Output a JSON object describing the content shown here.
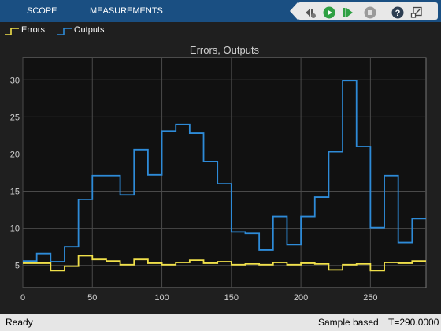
{
  "toolstrip": {
    "tabs": [
      {
        "label": "SCOPE"
      },
      {
        "label": "MEASUREMENTS"
      }
    ],
    "quick_access": [
      "step-back-icon",
      "run-icon",
      "step-forward-icon",
      "stop-icon",
      "help-icon",
      "undock-icon"
    ]
  },
  "legend": {
    "items": [
      {
        "label": "Errors",
        "color": "#f0e04a"
      },
      {
        "label": "Outputs",
        "color": "#2e8bd8"
      }
    ]
  },
  "colors": {
    "toolstrip": "#1a4f82",
    "background": "#1f1f1f",
    "axes": "#111111",
    "grid": "#4a4a4a",
    "text": "#d0d0d0"
  },
  "status": {
    "ready": "Ready",
    "sample_based": "Sample based",
    "time": "T=290.0000"
  },
  "chart_data": {
    "type": "line",
    "step": true,
    "title": "Errors, Outputs",
    "xlabel": "",
    "ylabel": "",
    "xlim": [
      0,
      290
    ],
    "ylim": [
      2,
      33
    ],
    "xticks": [
      0,
      50,
      100,
      150,
      200,
      250
    ],
    "yticks": [
      5,
      10,
      15,
      20,
      25,
      30
    ],
    "grid": true,
    "x": [
      0,
      10,
      20,
      30,
      40,
      50,
      60,
      70,
      80,
      90,
      100,
      110,
      120,
      130,
      140,
      150,
      160,
      170,
      180,
      190,
      200,
      210,
      220,
      230,
      240,
      250,
      260,
      270,
      280,
      290
    ],
    "series": [
      {
        "name": "Errors",
        "color": "#f0e04a",
        "values": [
          5.3,
          5.3,
          4.3,
          4.9,
          6.3,
          5.8,
          5.6,
          5.1,
          5.8,
          5.3,
          5.1,
          5.4,
          5.7,
          5.3,
          5.5,
          5.1,
          5.2,
          5.1,
          5.4,
          5.1,
          5.3,
          5.2,
          4.4,
          5.1,
          5.2,
          4.3,
          5.4,
          5.3,
          5.6,
          5.6
        ]
      },
      {
        "name": "Outputs",
        "color": "#2e8bd8",
        "values": [
          5.6,
          6.6,
          5.5,
          7.5,
          13.9,
          17.1,
          17.1,
          14.5,
          20.6,
          17.2,
          23.1,
          24.0,
          22.8,
          19.0,
          16.0,
          9.5,
          9.3,
          7.1,
          11.6,
          7.8,
          11.6,
          14.2,
          20.3,
          29.9,
          21.0,
          10.1,
          17.1,
          8.1,
          11.3,
          11.3
        ]
      }
    ]
  }
}
